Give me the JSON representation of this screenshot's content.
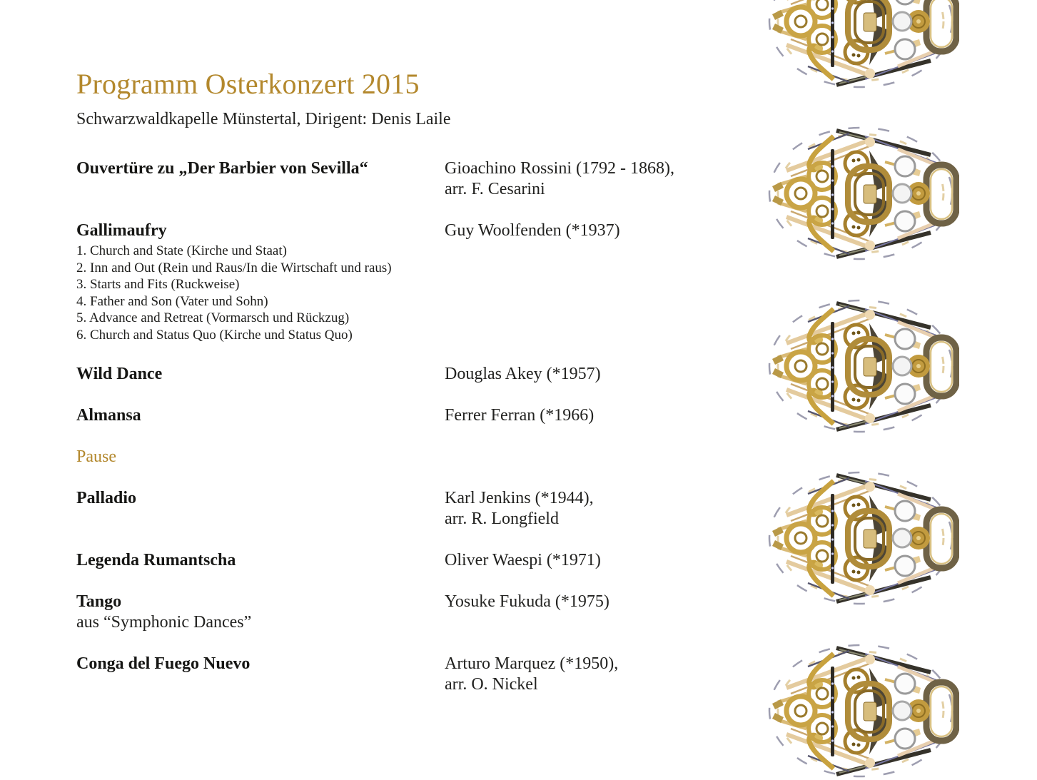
{
  "page": {
    "title": "Programm Osterkonzert 2015",
    "subtitle": "Schwarzwaldkapelle Münstertal, Dirigent: Denis Laile"
  },
  "program": [
    {
      "title": "Ouvertüre zu „Der Barbier von Sevilla“",
      "composer": [
        "Gioachino Rossini (1792 - 1868),",
        "arr. F. Cesarini"
      ]
    },
    {
      "title": "Gallimaufry",
      "composer": [
        "Guy Woolfenden (*1937)"
      ],
      "movements": [
        "1. Church and State (Kirche und Staat)",
        "2. Inn and Out (Rein und Raus/In die Wirtschaft und raus)",
        "3. Starts and Fits (Ruckweise)",
        "4. Father and Son (Vater und Sohn)",
        "5. Advance and Retreat (Vormarsch und Rückzug)",
        "6. Church and Status Quo (Kirche und Status Quo)"
      ]
    },
    {
      "title": "Wild Dance",
      "composer": [
        "Douglas Akey (*1957)"
      ]
    },
    {
      "title": "Almansa",
      "composer": [
        "Ferrer Ferran (*1966)"
      ]
    },
    {
      "pause": "Pause"
    },
    {
      "title": "Palladio",
      "composer": [
        "Karl Jenkins (*1944),",
        "arr. R. Longfield"
      ]
    },
    {
      "title": "Legenda Rumantscha",
      "composer": [
        "Oliver Waespi (*1971)"
      ]
    },
    {
      "title": "Tango",
      "title_note": "aus “Symphonic Dances”",
      "composer": [
        "Yosuke Fukuda (*1975)"
      ]
    },
    {
      "title": "Conga del Fuego Nuevo",
      "composer": [
        "Arturo Marquez (*1950),",
        "arr. O. Nickel"
      ]
    }
  ],
  "decor": {
    "instrument_collage": "oval collage of brass band instruments (tubas, horns, trumpets, trombones, saxophones, clarinets, drums, cymbals)",
    "instances": 5
  },
  "colors": {
    "accent_gold": "#b3882d",
    "body_text": "#1d1d1b",
    "brass_gold": "#c9a445",
    "dark_brass": "#6f6246"
  }
}
